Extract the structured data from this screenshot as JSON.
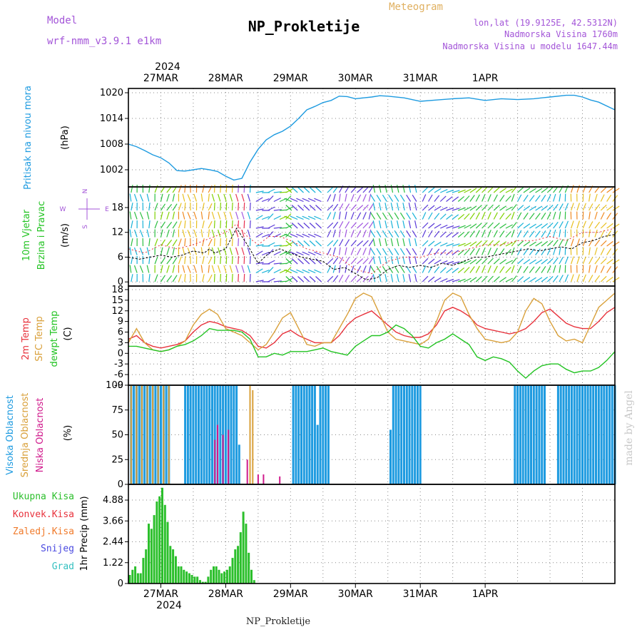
{
  "header": {
    "title": "NP_Prokletije",
    "product": "Meteogram",
    "model_label": "Model",
    "model_name": "wrf-nmm_v3.9.1  e1km",
    "location": "lon,lat (19.9125E, 42.5312N)",
    "altitude": "Nadmorska Visina 1760m",
    "model_altitude": "Nadmorska Visina u modelu 1647.44m"
  },
  "footer": {
    "station": "NP_Prokletije",
    "credit": "made by Angel"
  },
  "colors": {
    "pressure": "#1e9be0",
    "temp2m": "#e8323c",
    "sfc": "#d9a03a",
    "dewpt": "#22c322",
    "high_cloud": "#1e9be0",
    "mid_cloud": "#d9a03a",
    "low_cloud": "#d01a8c",
    "precip_total": "#2bbf2b",
    "precip_conv": "#e8323c",
    "precip_frz": "#f07a2a",
    "snow": "#4a4ae0",
    "graupel": "#34c0c0",
    "title_violet": "#a355d8",
    "meteogram": "#e0b060"
  },
  "chart_data": [
    {
      "type": "line",
      "panel": "pressure",
      "ylabel": [
        "Pritisak na nivou mora",
        "(hPa)"
      ],
      "ylim": [
        998,
        1021
      ],
      "yticks": [
        1002,
        1008,
        1014,
        1020
      ],
      "x_unit": "hours since 2024-03-26 12:00 UTC",
      "x_tick_labels": [
        "27MAR",
        "28MAR",
        "29MAR",
        "30MAR",
        "31MAR",
        "1APR"
      ],
      "x_tick_year": "2024",
      "series": [
        {
          "name": "Pritisak na nivou mora",
          "x": [
            0,
            3,
            6,
            9,
            12,
            15,
            18,
            21,
            24,
            27,
            30,
            33,
            36,
            39,
            42,
            45,
            48,
            51,
            54,
            57,
            60,
            63,
            66,
            69,
            72,
            75,
            78,
            81,
            84,
            87,
            90,
            93,
            96,
            102,
            108,
            114,
            120,
            126,
            132,
            138,
            144,
            150,
            156,
            162,
            165,
            168,
            171,
            174,
            180
          ],
          "values": [
            1008,
            1007.4,
            1006.5,
            1005.5,
            1004.8,
            1003.6,
            1001.8,
            1001.7,
            1002.0,
            1002.3,
            1002.0,
            1001.6,
            1000.5,
            999.6,
            1000.0,
            1003.8,
            1006.8,
            1009.0,
            1010.2,
            1011.0,
            1012.2,
            1014.0,
            1016.0,
            1016.8,
            1017.7,
            1018.2,
            1019.2,
            1019.1,
            1018.6,
            1018.8,
            1019.0,
            1019.3,
            1019.2,
            1018.8,
            1018.0,
            1018.3,
            1018.6,
            1018.8,
            1018.2,
            1018.6,
            1018.4,
            1018.6,
            1019.0,
            1019.4,
            1019.4,
            1019.0,
            1018.3,
            1017.8,
            1016.0
          ]
        }
      ]
    },
    {
      "type": "line",
      "panel": "wind",
      "ylabel": [
        "10m Vjetar",
        "Brzina i Pravac",
        "(m/s)"
      ],
      "ylim": [
        -1,
        23
      ],
      "yticks": [
        0,
        6,
        12,
        18
      ],
      "compass": [
        "N",
        "W",
        "E",
        "S"
      ],
      "series": [
        {
          "name": "10m Vjetar Brzina",
          "x": [
            0,
            4,
            8,
            12,
            16,
            20,
            24,
            28,
            30,
            32,
            36,
            40,
            44,
            48,
            52,
            56,
            60,
            64,
            68,
            72,
            76,
            80,
            84,
            88,
            92,
            96,
            100,
            104,
            108,
            112,
            116,
            120,
            124,
            128,
            132,
            136,
            140,
            144,
            148,
            152,
            156,
            160,
            164,
            168,
            172,
            176,
            180
          ],
          "values": [
            6,
            5.5,
            6,
            6.5,
            6,
            6.5,
            7.5,
            7,
            8,
            7,
            8,
            13,
            9,
            4.5,
            7,
            8,
            7,
            6,
            5.5,
            5,
            3,
            3.5,
            2,
            0.5,
            1,
            3,
            4,
            3.5,
            4,
            3.5,
            4.5,
            4,
            5,
            6,
            6,
            6.5,
            7,
            7.5,
            8,
            7.5,
            8,
            8.5,
            8,
            9.5,
            10,
            11,
            11.5
          ]
        },
        {
          "name": "Udari vjetra",
          "x": [
            0,
            6,
            12,
            18,
            24,
            28,
            32,
            36,
            40,
            44,
            48,
            52,
            56,
            60,
            66,
            72,
            78,
            84,
            90,
            96,
            102,
            108,
            114,
            120,
            126,
            132,
            138,
            144,
            150,
            156,
            162,
            168,
            174,
            180
          ],
          "values": [
            8,
            7,
            9,
            8,
            9,
            10,
            11,
            12,
            14,
            11,
            9,
            11,
            11,
            10,
            8,
            7,
            6,
            3,
            2,
            5,
            6,
            6,
            7,
            7,
            8,
            9,
            9,
            10,
            10,
            11,
            10,
            12,
            12,
            13
          ]
        }
      ]
    },
    {
      "type": "line",
      "panel": "temperature",
      "ylabel": [
        "2m Temp",
        "SFC Temp",
        "dewpt Temp",
        "(C)"
      ],
      "ylim": [
        -9,
        19
      ],
      "yticks": [
        -9,
        -6,
        -3,
        0,
        3,
        6,
        9,
        12,
        15,
        18
      ],
      "series": [
        {
          "name": "2m Temp",
          "x": [
            0,
            3,
            6,
            9,
            12,
            15,
            18,
            21,
            24,
            27,
            30,
            33,
            36,
            39,
            42,
            45,
            48,
            51,
            54,
            57,
            60,
            63,
            66,
            69,
            72,
            75,
            78,
            81,
            84,
            87,
            90,
            93,
            96,
            99,
            102,
            105,
            108,
            111,
            114,
            117,
            120,
            123,
            126,
            129,
            132,
            135,
            138,
            141,
            144,
            147,
            150,
            153,
            156,
            159,
            162,
            165,
            168,
            171,
            174,
            177,
            180
          ],
          "values": [
            4,
            5,
            3,
            2,
            1.5,
            2,
            2.5,
            3.5,
            6,
            8,
            9,
            8.5,
            7.5,
            7,
            6.5,
            5,
            2,
            1.5,
            3,
            5.5,
            6.5,
            5,
            4,
            3,
            3,
            3,
            5,
            8,
            10,
            11,
            12,
            10,
            8,
            6,
            5,
            4.5,
            4.5,
            5.5,
            8,
            12,
            13,
            12,
            10.5,
            8,
            7,
            6.5,
            6,
            5.5,
            6,
            7,
            9,
            11.5,
            12.5,
            10.5,
            8.5,
            7.5,
            7,
            7,
            9,
            11.5,
            13
          ]
        },
        {
          "name": "SFC Temp",
          "x": [
            0,
            3,
            6,
            9,
            12,
            15,
            18,
            21,
            24,
            27,
            30,
            33,
            36,
            39,
            42,
            45,
            48,
            51,
            54,
            57,
            60,
            63,
            66,
            69,
            72,
            75,
            78,
            81,
            84,
            87,
            90,
            93,
            96,
            99,
            102,
            105,
            108,
            111,
            114,
            117,
            120,
            123,
            126,
            129,
            132,
            135,
            138,
            141,
            144,
            147,
            150,
            153,
            156,
            159,
            162,
            165,
            168,
            171,
            174,
            177,
            180
          ],
          "values": [
            3,
            7,
            3,
            1,
            0.5,
            1,
            2,
            3.5,
            8,
            11,
            12.5,
            11,
            7,
            6,
            5,
            3,
            1,
            2.5,
            6,
            10,
            11.5,
            7,
            2.5,
            2,
            3,
            3,
            7,
            11,
            15.5,
            17,
            16,
            11,
            6,
            4,
            3.5,
            3,
            2.5,
            4,
            9,
            15,
            17,
            16,
            11,
            7,
            4,
            3.5,
            3,
            3.5,
            6,
            12,
            15.5,
            14,
            9,
            5,
            3.5,
            4,
            3,
            8,
            13,
            15,
            17
          ]
        },
        {
          "name": "dewpt Temp",
          "x": [
            0,
            3,
            6,
            9,
            12,
            15,
            18,
            21,
            24,
            27,
            30,
            33,
            36,
            39,
            42,
            45,
            48,
            51,
            54,
            57,
            60,
            63,
            66,
            69,
            72,
            75,
            78,
            81,
            84,
            87,
            90,
            93,
            96,
            99,
            102,
            105,
            108,
            111,
            114,
            117,
            120,
            123,
            126,
            129,
            132,
            135,
            138,
            141,
            144,
            147,
            150,
            153,
            156,
            159,
            162,
            165,
            168,
            171,
            174,
            177,
            180
          ],
          "values": [
            2,
            2,
            1.5,
            1,
            0.5,
            1,
            2,
            2.5,
            3.5,
            5,
            7,
            6.5,
            6.5,
            6.5,
            6,
            4,
            -1,
            -1,
            0,
            -0.5,
            0.5,
            0.5,
            0.5,
            1,
            1.5,
            0.5,
            0,
            -0.5,
            2,
            3.5,
            5,
            5,
            6,
            8,
            7,
            5,
            2,
            1.5,
            3,
            4,
            5.5,
            4,
            2.5,
            -1,
            -2,
            -1,
            -1.5,
            -2.5,
            -5,
            -7,
            -5,
            -3.5,
            -3,
            -3,
            -4.5,
            -5.5,
            -5,
            -5,
            -4,
            -2,
            0.5
          ]
        }
      ]
    },
    {
      "type": "bar",
      "panel": "cloud_cover",
      "ylabel": [
        "Visoka Oblacnost",
        "Srednja Oblacnost",
        "Niska Oblacnost",
        "(%)"
      ],
      "ylim": [
        0,
        100
      ],
      "yticks": [
        0,
        25,
        50,
        75,
        100
      ],
      "series": [
        {
          "name": "Visoka Oblacnost",
          "x": [
            1,
            2,
            3,
            4,
            5,
            6,
            7,
            8,
            9,
            10,
            11,
            12,
            13,
            14,
            15,
            21,
            22,
            23,
            24,
            25,
            26,
            27,
            28,
            29,
            30,
            31,
            32,
            33,
            34,
            35,
            36,
            37,
            38,
            39,
            40,
            41,
            61,
            62,
            63,
            64,
            65,
            66,
            67,
            68,
            69,
            70,
            71,
            72,
            73,
            74,
            97,
            98,
            99,
            100,
            101,
            102,
            103,
            104,
            105,
            106,
            107,
            108,
            143,
            144,
            145,
            146,
            147,
            148,
            149,
            150,
            151,
            152,
            153,
            154,
            159,
            160,
            161,
            162,
            163,
            164,
            165,
            166,
            167,
            168,
            169,
            170,
            171,
            172,
            173,
            174,
            175,
            176,
            177,
            178,
            179,
            180
          ],
          "values": [
            100,
            100,
            100,
            100,
            100,
            100,
            100,
            100,
            100,
            100,
            100,
            100,
            100,
            100,
            100,
            100,
            100,
            100,
            100,
            100,
            100,
            100,
            100,
            100,
            100,
            100,
            100,
            100,
            100,
            100,
            100,
            100,
            100,
            100,
            100,
            40,
            100,
            100,
            100,
            100,
            100,
            100,
            100,
            100,
            100,
            60,
            100,
            100,
            100,
            100,
            55,
            100,
            100,
            100,
            100,
            100,
            100,
            100,
            100,
            100,
            100,
            100,
            100,
            100,
            100,
            100,
            100,
            100,
            100,
            100,
            100,
            100,
            100,
            100,
            100,
            100,
            100,
            100,
            100,
            100,
            100,
            100,
            100,
            100,
            100,
            100,
            100,
            100,
            100,
            100,
            100,
            100,
            100,
            100,
            100,
            100
          ]
        },
        {
          "name": "Srednja Oblacnost",
          "x": [
            1,
            3,
            5,
            7,
            9,
            11,
            13,
            15,
            33,
            45,
            46
          ],
          "values": [
            100,
            100,
            100,
            100,
            100,
            100,
            100,
            100,
            60,
            100,
            95
          ]
        },
        {
          "name": "Niska Oblacnost",
          "x": [
            32,
            33,
            35,
            37,
            44,
            48,
            50,
            56
          ],
          "values": [
            45,
            60,
            50,
            55,
            25,
            10,
            10,
            8
          ]
        }
      ]
    },
    {
      "type": "bar",
      "panel": "precipitation",
      "ylabel": [
        "1hr Precip (mm)"
      ],
      "ylim": [
        0,
        5.8
      ],
      "yticks": [
        0,
        1.22,
        2.44,
        3.66,
        4.88
      ],
      "legend": [
        "Ukupna Kisa",
        "Konvek.Kisa",
        "Zaledj.Kisa",
        "Snijeg",
        "Grad"
      ],
      "series": [
        {
          "name": "Ukupna Kisa",
          "x": [
            0,
            1,
            2,
            3,
            4,
            5,
            6,
            7,
            8,
            9,
            10,
            11,
            12,
            13,
            14,
            15,
            16,
            17,
            18,
            19,
            20,
            21,
            22,
            23,
            24,
            25,
            26,
            27,
            28,
            29,
            30,
            31,
            32,
            33,
            34,
            35,
            36,
            37,
            38,
            39,
            40,
            41,
            42,
            43,
            44,
            45,
            46
          ],
          "values": [
            0.5,
            0.8,
            1,
            0.6,
            0.6,
            1.5,
            2,
            3.5,
            3.2,
            4,
            4.8,
            5.1,
            5.6,
            4.6,
            3.6,
            2.2,
            2,
            1.6,
            1,
            1,
            0.8,
            0.7,
            0.6,
            0.5,
            0.4,
            0.4,
            0.2,
            0.1,
            0.1,
            0.4,
            0.8,
            1,
            1,
            0.8,
            0.6,
            0.7,
            0.8,
            1,
            1.5,
            2,
            2.2,
            3,
            4.2,
            3.5,
            1.8,
            0.8,
            0.2
          ]
        }
      ]
    }
  ]
}
